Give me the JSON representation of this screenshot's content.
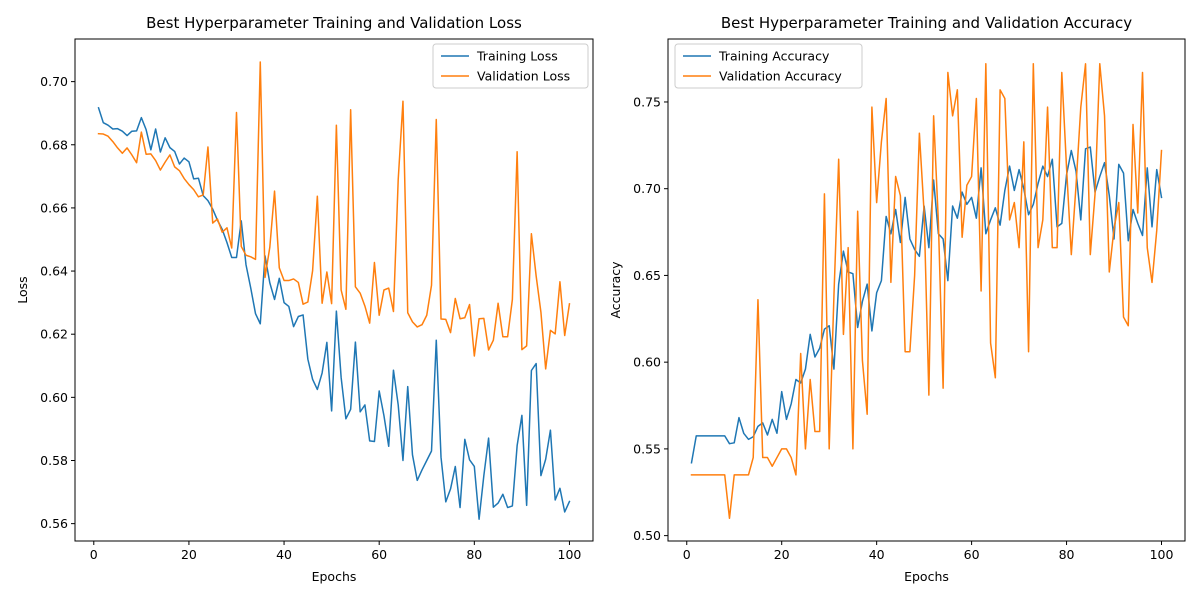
{
  "chart_data": [
    {
      "type": "line",
      "title": "Best Hyperparameter Training and Validation Loss",
      "xlabel": "Epochs",
      "ylabel": "Loss",
      "xlim": [
        -3.95,
        104.95
      ],
      "ylim": [
        0.5545,
        0.7135
      ],
      "xticks": [
        0,
        20,
        40,
        60,
        80,
        100
      ],
      "yticks": [
        0.56,
        0.58,
        0.6,
        0.62,
        0.64,
        0.66,
        0.68,
        0.7
      ],
      "ytick_labels": [
        "0.56",
        "0.58",
        "0.60",
        "0.62",
        "0.64",
        "0.66",
        "0.68",
        "0.70"
      ],
      "legend_loc": "upper right",
      "x": [
        1,
        2,
        3,
        4,
        5,
        6,
        7,
        8,
        9,
        10,
        11,
        12,
        13,
        14,
        15,
        16,
        17,
        18,
        19,
        20,
        21,
        22,
        23,
        24,
        25,
        26,
        27,
        28,
        29,
        30,
        31,
        32,
        33,
        34,
        35,
        36,
        37,
        38,
        39,
        40,
        41,
        42,
        43,
        44,
        45,
        46,
        47,
        48,
        49,
        50,
        51,
        52,
        53,
        54,
        55,
        56,
        57,
        58,
        59,
        60,
        61,
        62,
        63,
        64,
        65,
        66,
        67,
        68,
        69,
        70,
        71,
        72,
        73,
        74,
        75,
        76,
        77,
        78,
        79,
        80,
        81,
        82,
        83,
        84,
        85,
        86,
        87,
        88,
        89,
        90,
        91,
        92,
        93,
        94,
        95,
        96,
        97,
        98,
        99,
        100
      ],
      "series": [
        {
          "name": "Training Loss",
          "color": "#1f77b4",
          "values": [
            0.6917,
            0.687,
            0.6862,
            0.685,
            0.6851,
            0.6843,
            0.6829,
            0.6843,
            0.6844,
            0.6886,
            0.6848,
            0.6784,
            0.685,
            0.6777,
            0.6822,
            0.6791,
            0.6779,
            0.6739,
            0.6758,
            0.6746,
            0.6692,
            0.6694,
            0.6639,
            0.6623,
            0.6596,
            0.6561,
            0.6532,
            0.649,
            0.6443,
            0.6443,
            0.6559,
            0.642,
            0.6346,
            0.6265,
            0.6233,
            0.6448,
            0.6363,
            0.631,
            0.6377,
            0.63,
            0.6288,
            0.6224,
            0.6256,
            0.6261,
            0.6121,
            0.6057,
            0.6025,
            0.6077,
            0.6174,
            0.5957,
            0.6273,
            0.6063,
            0.5932,
            0.5962,
            0.6175,
            0.5954,
            0.5976,
            0.5862,
            0.586,
            0.602,
            0.5942,
            0.5845,
            0.6086,
            0.5976,
            0.58,
            0.6034,
            0.5818,
            0.5737,
            0.577,
            0.58,
            0.583,
            0.6181,
            0.581,
            0.5669,
            0.571,
            0.5781,
            0.5651,
            0.5867,
            0.5802,
            0.5781,
            0.5614,
            0.5752,
            0.5871,
            0.5652,
            0.5665,
            0.5693,
            0.5651,
            0.5656,
            0.5847,
            0.5943,
            0.5658,
            0.6085,
            0.6107,
            0.5752,
            0.5804,
            0.5896,
            0.5675,
            0.5712,
            0.5637,
            0.567
          ]
        },
        {
          "name": "Validation Loss",
          "color": "#ff7f0e",
          "values": [
            0.6835,
            0.6834,
            0.6827,
            0.681,
            0.679,
            0.6773,
            0.679,
            0.6768,
            0.6743,
            0.684,
            0.677,
            0.6771,
            0.675,
            0.672,
            0.6745,
            0.6768,
            0.673,
            0.6718,
            0.6693,
            0.6674,
            0.6658,
            0.6635,
            0.6641,
            0.6793,
            0.6552,
            0.6565,
            0.6523,
            0.6537,
            0.6473,
            0.6902,
            0.6478,
            0.645,
            0.6445,
            0.6437,
            0.7062,
            0.638,
            0.6475,
            0.6653,
            0.641,
            0.637,
            0.637,
            0.6375,
            0.6364,
            0.6295,
            0.6302,
            0.6401,
            0.6637,
            0.6298,
            0.6397,
            0.6297,
            0.6862,
            0.634,
            0.6279,
            0.6911,
            0.635,
            0.633,
            0.6289,
            0.6235,
            0.6427,
            0.626,
            0.634,
            0.6346,
            0.6272,
            0.669,
            0.6938,
            0.6268,
            0.6239,
            0.6223,
            0.623,
            0.626,
            0.6355,
            0.688,
            0.6248,
            0.6247,
            0.6205,
            0.6313,
            0.6249,
            0.6252,
            0.6294,
            0.6131,
            0.6249,
            0.625,
            0.615,
            0.6181,
            0.6298,
            0.6192,
            0.6192,
            0.631,
            0.6778,
            0.6151,
            0.6163,
            0.6518,
            0.6384,
            0.627,
            0.609,
            0.6212,
            0.6201,
            0.6366,
            0.6196,
            0.6296
          ]
        }
      ]
    },
    {
      "type": "line",
      "title": "Best Hyperparameter Training and Validation Accuracy",
      "xlabel": "Epochs",
      "ylabel": "Accuracy",
      "xlim": [
        -3.95,
        104.95
      ],
      "ylim": [
        0.4969,
        0.7863
      ],
      "xticks": [
        0,
        20,
        40,
        60,
        80,
        100
      ],
      "yticks": [
        0.5,
        0.55,
        0.6,
        0.65,
        0.7,
        0.75
      ],
      "ytick_labels": [
        "0.50",
        "0.55",
        "0.60",
        "0.65",
        "0.70",
        "0.75"
      ],
      "legend_loc": "upper left",
      "x": [
        1,
        2,
        3,
        4,
        5,
        6,
        7,
        8,
        9,
        10,
        11,
        12,
        13,
        14,
        15,
        16,
        17,
        18,
        19,
        20,
        21,
        22,
        23,
        24,
        25,
        26,
        27,
        28,
        29,
        30,
        31,
        32,
        33,
        34,
        35,
        36,
        37,
        38,
        39,
        40,
        41,
        42,
        43,
        44,
        45,
        46,
        47,
        48,
        49,
        50,
        51,
        52,
        53,
        54,
        55,
        56,
        57,
        58,
        59,
        60,
        61,
        62,
        63,
        64,
        65,
        66,
        67,
        68,
        69,
        70,
        71,
        72,
        73,
        74,
        75,
        76,
        77,
        78,
        79,
        80,
        81,
        82,
        83,
        84,
        85,
        86,
        87,
        88,
        89,
        90,
        91,
        92,
        93,
        94,
        95,
        96,
        97,
        98,
        99,
        100
      ],
      "series": [
        {
          "name": "Training Accuracy",
          "color": "#1f77b4",
          "values": [
            0.542,
            0.5575,
            0.5575,
            0.5575,
            0.5575,
            0.5575,
            0.5575,
            0.5575,
            0.553,
            0.5535,
            0.568,
            0.559,
            0.5555,
            0.557,
            0.563,
            0.565,
            0.558,
            0.567,
            0.559,
            0.583,
            0.567,
            0.576,
            0.59,
            0.588,
            0.596,
            0.616,
            0.603,
            0.608,
            0.619,
            0.621,
            0.596,
            0.645,
            0.664,
            0.652,
            0.651,
            0.62,
            0.635,
            0.645,
            0.618,
            0.64,
            0.647,
            0.684,
            0.674,
            0.688,
            0.669,
            0.695,
            0.671,
            0.665,
            0.661,
            0.69,
            0.666,
            0.705,
            0.674,
            0.671,
            0.647,
            0.69,
            0.683,
            0.698,
            0.691,
            0.695,
            0.683,
            0.712,
            0.674,
            0.682,
            0.689,
            0.679,
            0.699,
            0.713,
            0.699,
            0.711,
            0.7,
            0.685,
            0.691,
            0.703,
            0.713,
            0.707,
            0.717,
            0.678,
            0.68,
            0.708,
            0.722,
            0.71,
            0.682,
            0.723,
            0.724,
            0.698,
            0.707,
            0.715,
            0.696,
            0.671,
            0.714,
            0.709,
            0.67,
            0.688,
            0.68,
            0.673,
            0.712,
            0.678,
            0.711,
            0.695
          ]
        },
        {
          "name": "Validation Accuracy",
          "color": "#ff7f0e",
          "values": [
            0.535,
            0.535,
            0.535,
            0.535,
            0.535,
            0.535,
            0.535,
            0.535,
            0.51,
            0.535,
            0.535,
            0.535,
            0.535,
            0.545,
            0.636,
            0.545,
            0.545,
            0.54,
            0.545,
            0.55,
            0.55,
            0.545,
            0.535,
            0.605,
            0.55,
            0.59,
            0.56,
            0.56,
            0.697,
            0.55,
            0.638,
            0.717,
            0.616,
            0.666,
            0.55,
            0.687,
            0.601,
            0.57,
            0.747,
            0.692,
            0.727,
            0.752,
            0.646,
            0.707,
            0.696,
            0.606,
            0.606,
            0.65,
            0.732,
            0.686,
            0.581,
            0.742,
            0.681,
            0.585,
            0.767,
            0.742,
            0.757,
            0.672,
            0.702,
            0.707,
            0.752,
            0.641,
            0.772,
            0.611,
            0.591,
            0.757,
            0.752,
            0.682,
            0.692,
            0.666,
            0.727,
            0.606,
            0.772,
            0.666,
            0.682,
            0.747,
            0.666,
            0.666,
            0.767,
            0.712,
            0.662,
            0.702,
            0.747,
            0.772,
            0.662,
            0.697,
            0.772,
            0.742,
            0.652,
            0.677,
            0.692,
            0.626,
            0.621,
            0.737,
            0.686,
            0.767,
            0.666,
            0.646,
            0.676,
            0.722
          ]
        }
      ]
    }
  ]
}
